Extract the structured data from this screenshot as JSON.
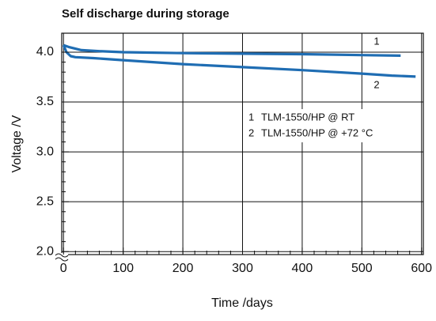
{
  "chart_data": {
    "type": "line",
    "title": "Self discharge during storage",
    "xlabel": "Time /days",
    "ylabel": "Voltage /V",
    "xlim": [
      -3,
      603
    ],
    "ylim": [
      1.97,
      4.19
    ],
    "xticks": [
      0,
      100,
      200,
      300,
      400,
      500,
      600
    ],
    "yticks": [
      {
        "value": 2,
        "label": "2.0"
      },
      2.5,
      {
        "value": 3,
        "label": "3.0"
      },
      3.5,
      {
        "value": 4,
        "label": "4.0"
      }
    ],
    "grid": true,
    "legend": "upper right",
    "series": [
      {
        "name": "TLM-1550/HP @ RT",
        "label": "1",
        "color": "#1f6db3",
        "x": [
          0,
          10,
          30,
          60,
          100,
          200,
          300,
          400,
          500,
          565
        ],
        "values": [
          4.07,
          4.05,
          4.02,
          4.01,
          4.0,
          3.99,
          3.985,
          3.98,
          3.97,
          3.965
        ]
      },
      {
        "name": "TLM-1550/HP @ +72 °C",
        "label": "2",
        "color": "#1f6db3",
        "x": [
          0,
          5,
          12,
          20,
          50,
          100,
          200,
          300,
          400,
          500,
          550,
          590
        ],
        "values": [
          4.07,
          4.0,
          3.96,
          3.95,
          3.94,
          3.92,
          3.88,
          3.85,
          3.82,
          3.785,
          3.765,
          3.755
        ]
      }
    ]
  }
}
